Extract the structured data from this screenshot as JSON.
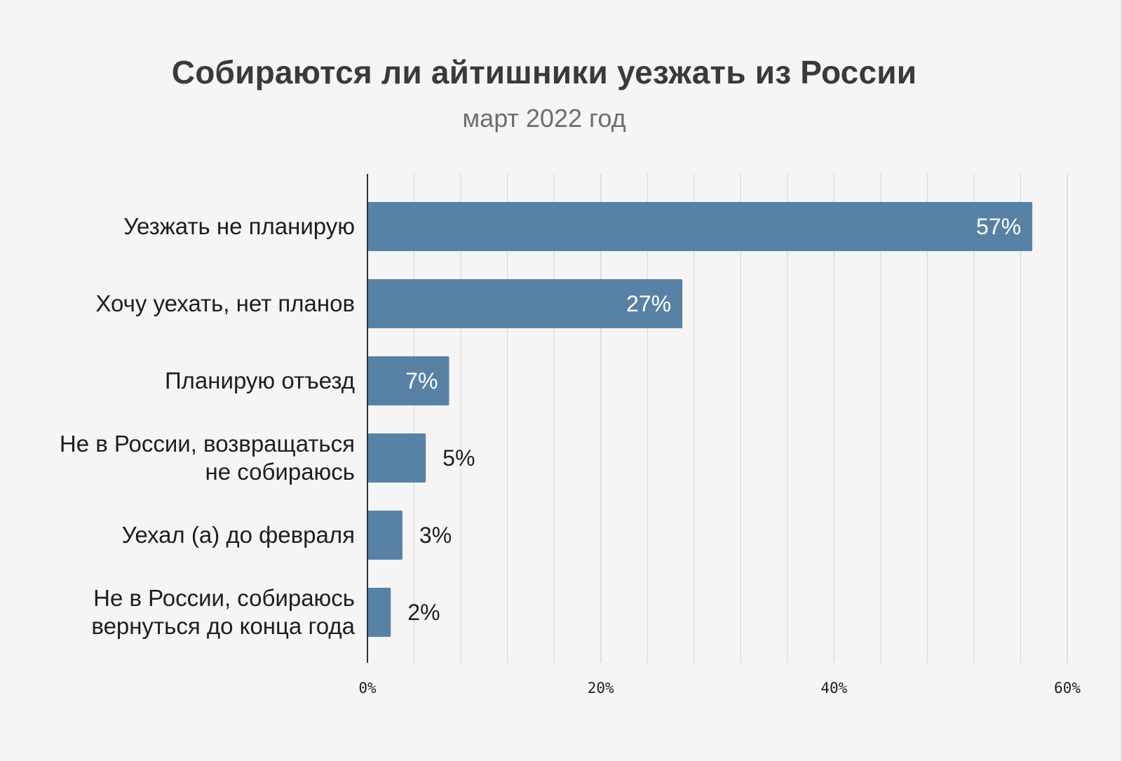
{
  "colors": {
    "bar": "#5882a5",
    "background": "#f5f5f5",
    "grid": "#d9d9d9",
    "axis": "#333333",
    "label_inside": "#ffffff",
    "label_outside": "#1e1e1e"
  },
  "chart_data": {
    "type": "bar",
    "orientation": "horizontal",
    "title": "Собираются ли айтишники уезжать из России",
    "subtitle": "март 2022 год",
    "categories": [
      [
        "Уезжать не планирую"
      ],
      [
        "Хочу уехать, нет планов"
      ],
      [
        "Планирую отъезд"
      ],
      [
        "Не в России, возвращаться",
        "не собираюсь"
      ],
      [
        "Уехал (а) до февраля"
      ],
      [
        "Не в России, собираюсь",
        "вернуться до конца года"
      ]
    ],
    "values": [
      57,
      27,
      7,
      5,
      3,
      2
    ],
    "value_labels": [
      "57%",
      "27%",
      "7%",
      "5%",
      "3%",
      "2%"
    ],
    "xlim": [
      0,
      60
    ],
    "xticks": [
      0,
      20,
      40,
      60
    ],
    "xtick_labels": [
      "0%",
      "20%",
      "40%",
      "60%"
    ],
    "grid": true,
    "minor_grid": true,
    "legend": "none"
  }
}
